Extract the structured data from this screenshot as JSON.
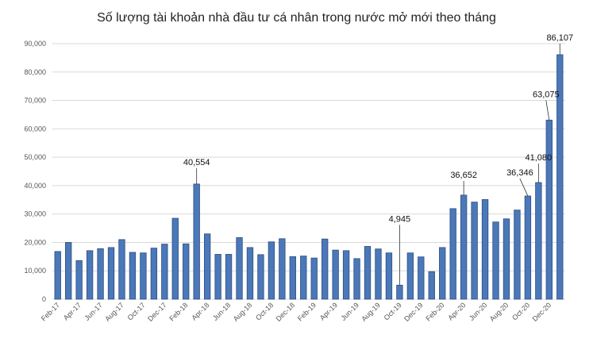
{
  "chart_data": {
    "type": "bar",
    "title": "Số lượng tài khoản nhà đầu tư cá nhân trong nước mở mới theo tháng",
    "xlabel": "",
    "ylabel": "",
    "ylim": [
      0,
      90000
    ],
    "grid": true,
    "legend": "none",
    "bar_color": "#4a78b8",
    "y_ticks": [
      "0",
      "10,000",
      "20,000",
      "30,000",
      "40,000",
      "50,000",
      "60,000",
      "70,000",
      "80,000",
      "90,000"
    ],
    "categories": [
      "Feb-17",
      "Mar-17",
      "Apr-17",
      "May-17",
      "Jun-17",
      "Jul-17",
      "Aug-17",
      "Sep-17",
      "Oct-17",
      "Nov-17",
      "Dec-17",
      "Jan-18",
      "Feb-18",
      "Mar-18",
      "Apr-18",
      "May-18",
      "Jun-18",
      "Jul-18",
      "Aug-18",
      "Sep-18",
      "Oct-18",
      "Nov-18",
      "Dec-18",
      "Jan-19",
      "Feb-19",
      "Mar-19",
      "Apr-19",
      "May-19",
      "Jun-19",
      "Jul-19",
      "Aug-19",
      "Sep-19",
      "Oct-19",
      "Nov-19",
      "Dec-19",
      "Jan-20",
      "Feb-20",
      "Mar-20",
      "Apr-20",
      "May-20",
      "Jun-20",
      "Jul-20",
      "Aug-20",
      "Sep-20",
      "Oct-20",
      "Nov-20",
      "Dec-20",
      "Jan-21"
    ],
    "x_tick_labels": [
      "Feb-17",
      "",
      "Apr-17",
      "",
      "Jun-17",
      "",
      "Aug-17",
      "",
      "Oct-17",
      "",
      "Dec-17",
      "",
      "Feb-18",
      "",
      "Apr-18",
      "",
      "Jun-18",
      "",
      "Aug-18",
      "",
      "Oct-18",
      "",
      "Dec-18",
      "",
      "Feb-19",
      "",
      "Apr-19",
      "",
      "Jun-19",
      "",
      "Aug-19",
      "",
      "Oct-19",
      "",
      "Dec-19",
      "",
      "Feb-20",
      "",
      "Apr-20",
      "",
      "Jun-20",
      "",
      "Aug-20",
      "",
      "Oct-20",
      "",
      "Dec-20",
      ""
    ],
    "values": [
      16800,
      20000,
      13600,
      17100,
      17800,
      18200,
      21000,
      16500,
      16300,
      18000,
      19400,
      28500,
      19500,
      40554,
      23000,
      15800,
      15800,
      21700,
      18200,
      15700,
      20200,
      21300,
      15000,
      15200,
      14500,
      21200,
      17300,
      17100,
      14300,
      18600,
      17700,
      16300,
      4945,
      16300,
      14900,
      9700,
      18200,
      31900,
      36652,
      34200,
      35100,
      27200,
      28300,
      31400,
      36346,
      41080,
      63075,
      86107
    ],
    "annotations": [
      {
        "index": 13,
        "text": "40,554"
      },
      {
        "index": 32,
        "text": "4,945"
      },
      {
        "index": 38,
        "text": "36,652"
      },
      {
        "index": 44,
        "text": "36,346"
      },
      {
        "index": 45,
        "text": "41,080"
      },
      {
        "index": 46,
        "text": "63,075"
      },
      {
        "index": 47,
        "text": "86,107"
      }
    ]
  }
}
